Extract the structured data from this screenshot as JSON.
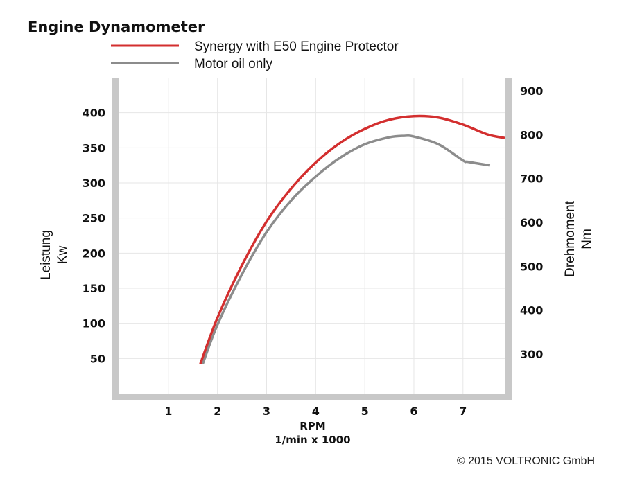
{
  "chart_data": {
    "type": "line",
    "title": "Engine Dynamometer",
    "xlabel": "RPM",
    "xlabel_sub": "1/min x 1000",
    "ylabel_left": "Leistung",
    "ylabel_left_unit": "Kw",
    "ylabel_right": "Drehmoment",
    "ylabel_right_unit": "Nm",
    "x_ticks": [
      1,
      2,
      3,
      4,
      5,
      6,
      7
    ],
    "xlim": [
      0,
      7.85
    ],
    "y_left_ticks": [
      50,
      100,
      150,
      200,
      250,
      300,
      350,
      400
    ],
    "ylim_left": [
      0,
      450
    ],
    "y_right_ticks": [
      300,
      400,
      500,
      600,
      700,
      800,
      900
    ],
    "ylim_right": [
      210,
      930
    ],
    "grid": true,
    "legend_position": "top",
    "series": [
      {
        "name": "Synergy with E50 Engine Protector",
        "color": "#d32f2f",
        "points": [
          [
            1.65,
            42
          ],
          [
            2.0,
            108
          ],
          [
            2.5,
            183
          ],
          [
            3.0,
            245
          ],
          [
            3.5,
            292
          ],
          [
            4.0,
            329
          ],
          [
            4.5,
            357
          ],
          [
            5.0,
            377
          ],
          [
            5.5,
            390
          ],
          [
            6.0,
            395
          ],
          [
            6.5,
            393
          ],
          [
            7.0,
            383
          ],
          [
            7.5,
            369
          ],
          [
            7.85,
            364
          ]
        ]
      },
      {
        "name": "Motor oil only",
        "color": "#8c8c8c",
        "points": [
          [
            1.7,
            42
          ],
          [
            2.0,
            98
          ],
          [
            2.5,
            170
          ],
          [
            3.0,
            230
          ],
          [
            3.5,
            275
          ],
          [
            4.0,
            309
          ],
          [
            4.5,
            336
          ],
          [
            5.0,
            355
          ],
          [
            5.5,
            365
          ],
          [
            5.8,
            367
          ],
          [
            6.0,
            366
          ],
          [
            6.5,
            355
          ],
          [
            7.0,
            332
          ],
          [
            7.1,
            330
          ],
          [
            7.55,
            325
          ]
        ]
      }
    ]
  },
  "copyright": "© 2015 VOLTRONIC GmbH"
}
